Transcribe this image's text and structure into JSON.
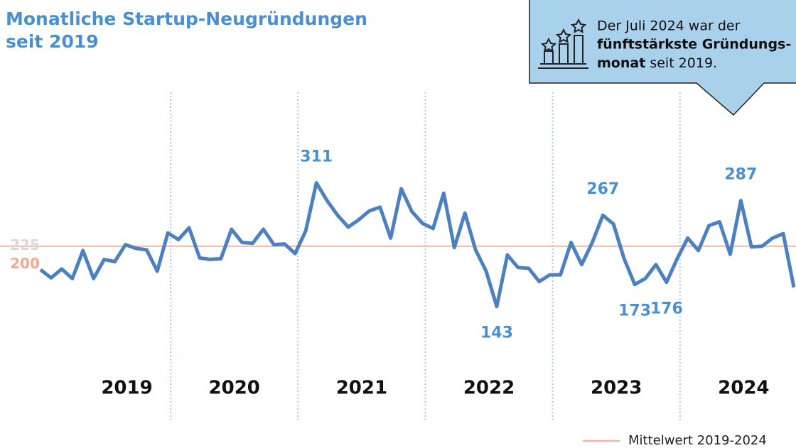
{
  "chart_data": {
    "type": "line",
    "title_lines": [
      "Monatliche Startup-Neugründungen",
      "seit 2019"
    ],
    "callout": [
      "Der Juli 2024 war der",
      "fünftstärkste Gründungs-",
      "monat",
      "seit 2019."
    ],
    "years": [
      "2019",
      "2020",
      "2021",
      "2022",
      "2023",
      "2024"
    ],
    "series": [
      {
        "name": "Startup-Neugründungen",
        "color": "#4d80c0",
        "values": [
          193,
          182,
          194,
          181,
          219,
          181,
          207,
          204,
          227,
          222,
          220,
          191,
          243,
          234,
          250,
          209,
          207,
          208,
          248,
          230,
          229,
          248,
          227,
          228,
          215,
          246,
          311,
          287,
          267,
          251,
          261,
          273,
          278,
          236,
          303,
          272,
          256,
          249,
          297,
          223,
          270,
          220,
          191,
          143,
          213,
          196,
          195,
          177,
          186,
          186,
          230,
          200,
          230,
          267,
          255,
          208,
          173,
          181,
          200,
          176,
          208,
          236,
          219,
          253,
          258,
          214,
          287,
          224,
          225,
          236,
          242,
          169
        ],
        "value_labels": [
          null,
          null,
          null,
          null,
          null,
          null,
          null,
          null,
          null,
          null,
          null,
          null,
          null,
          null,
          null,
          null,
          null,
          null,
          null,
          null,
          null,
          null,
          null,
          null,
          null,
          null,
          "311",
          null,
          null,
          null,
          null,
          null,
          null,
          null,
          null,
          null,
          null,
          null,
          null,
          null,
          null,
          null,
          null,
          "143",
          null,
          null,
          null,
          null,
          null,
          null,
          null,
          null,
          null,
          "267",
          null,
          null,
          "173",
          null,
          null,
          "176",
          null,
          null,
          null,
          null,
          null,
          null,
          "287",
          null,
          null,
          null,
          null,
          null
        ]
      }
    ],
    "mean_line": {
      "name": "Mittelwert 2019-2024",
      "value": 225,
      "color": "#f7b2a2"
    },
    "ylim": [
      0,
      435
    ],
    "yticks": [
      225,
      200
    ],
    "ytick_colors": [
      "#d9d9d9",
      "#f6a890"
    ]
  }
}
